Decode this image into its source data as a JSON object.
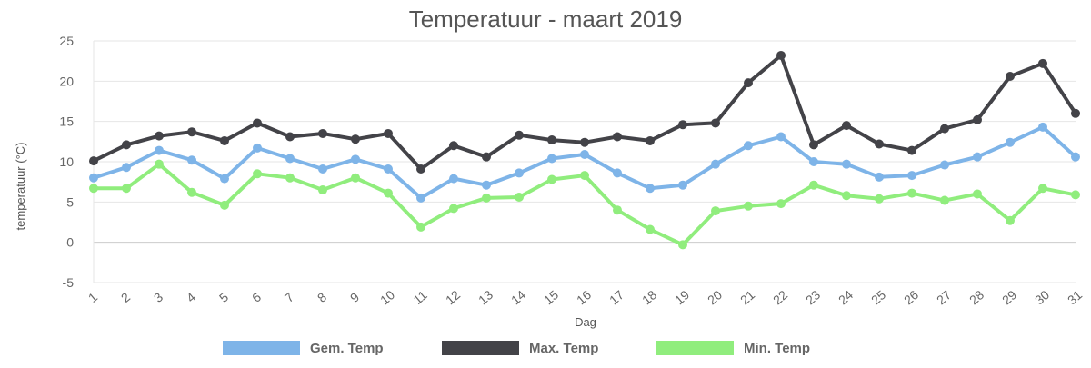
{
  "chart_data": {
    "type": "line",
    "title": "Temperatuur - maart 2019",
    "xlabel": "Dag",
    "ylabel": "temperatuur (°C)",
    "ylim": [
      -5,
      25
    ],
    "yticks": [
      -5,
      0,
      5,
      10,
      15,
      20,
      25
    ],
    "grid": true,
    "legend_position": "bottom",
    "categories": [
      "1",
      "2",
      "3",
      "4",
      "5",
      "6",
      "7",
      "8",
      "9",
      "10",
      "11",
      "12",
      "13",
      "14",
      "15",
      "16",
      "17",
      "18",
      "19",
      "20",
      "21",
      "22",
      "23",
      "24",
      "25",
      "26",
      "27",
      "28",
      "29",
      "30",
      "31"
    ],
    "series": [
      {
        "name": "Gem. Temp",
        "color": "#7eb4e8",
        "values": [
          8.0,
          9.3,
          11.4,
          10.2,
          7.9,
          11.7,
          10.4,
          9.1,
          10.3,
          9.1,
          5.5,
          7.9,
          7.1,
          8.6,
          10.4,
          10.9,
          8.6,
          6.7,
          7.1,
          9.7,
          12.0,
          13.1,
          10.0,
          9.7,
          8.1,
          8.3,
          9.6,
          10.6,
          12.4,
          14.3,
          10.6
        ]
      },
      {
        "name": "Max. Temp",
        "color": "#434348",
        "values": [
          10.1,
          12.1,
          13.2,
          13.7,
          12.6,
          14.8,
          13.1,
          13.5,
          12.8,
          13.5,
          9.1,
          12.0,
          10.6,
          13.3,
          12.7,
          12.4,
          13.1,
          12.6,
          14.6,
          14.8,
          19.8,
          23.2,
          12.1,
          14.5,
          12.2,
          11.4,
          14.1,
          15.2,
          20.6,
          22.2,
          16.0
        ]
      },
      {
        "name": "Min. Temp",
        "color": "#90ed7d",
        "values": [
          6.7,
          6.7,
          9.7,
          6.2,
          4.6,
          8.5,
          8.0,
          6.5,
          8.0,
          6.1,
          1.9,
          4.2,
          5.5,
          5.6,
          7.8,
          8.3,
          4.0,
          1.6,
          -0.3,
          3.9,
          4.5,
          4.8,
          7.1,
          5.8,
          5.4,
          6.1,
          5.2,
          6.0,
          2.7,
          6.7,
          5.9
        ]
      }
    ]
  }
}
